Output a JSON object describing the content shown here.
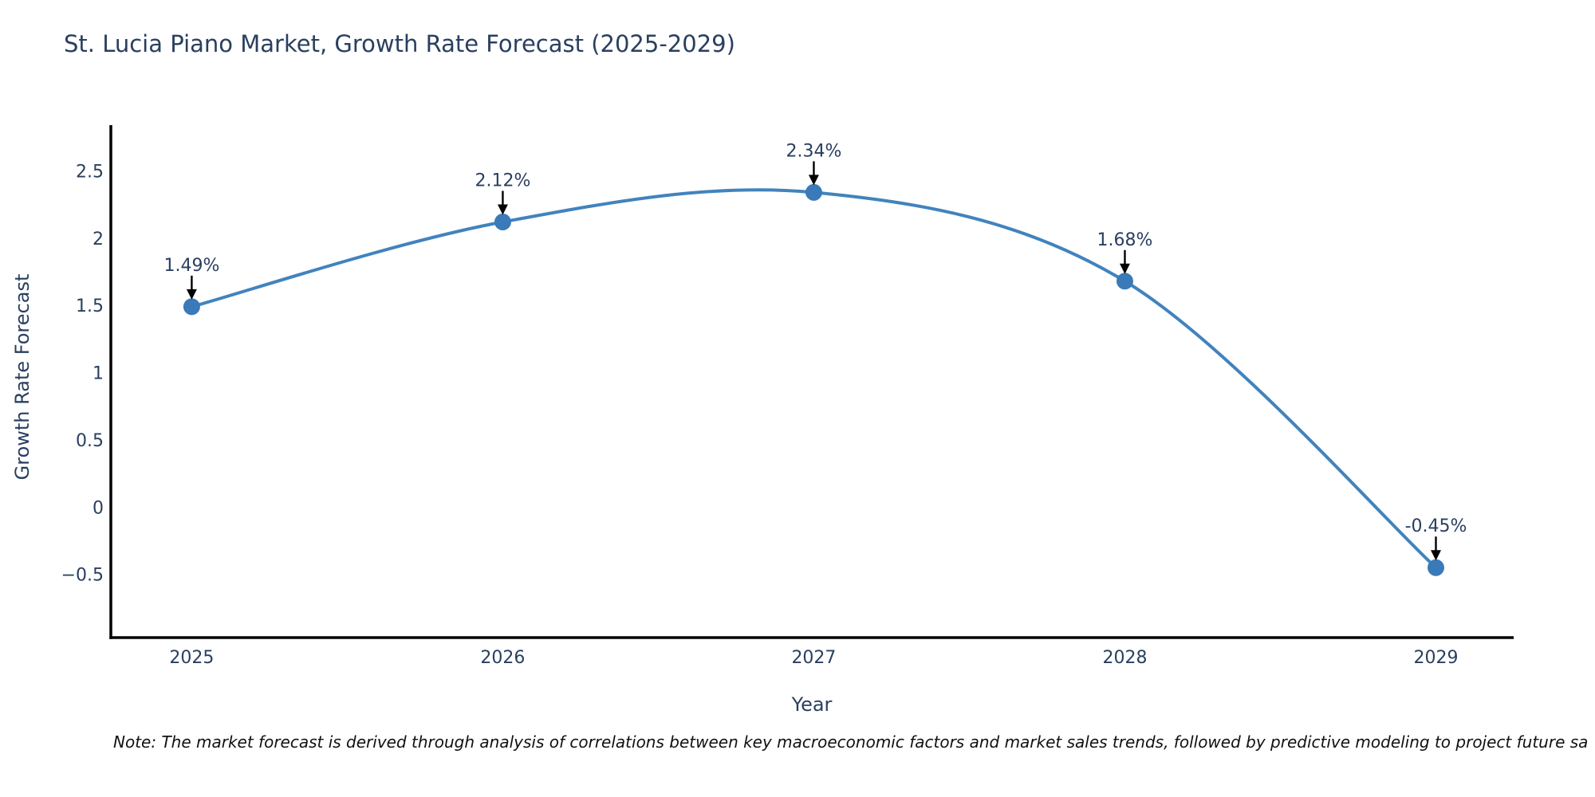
{
  "chart_data": {
    "type": "line",
    "title": "St. Lucia Piano Market, Growth Rate Forecast (2025-2029)",
    "xlabel": "Year",
    "ylabel": "Growth Rate Forecast",
    "x": [
      2025,
      2026,
      2027,
      2028,
      2029
    ],
    "values": [
      1.49,
      2.12,
      2.34,
      1.68,
      -0.45
    ],
    "point_labels": [
      "1.49%",
      "2.12%",
      "2.34%",
      "1.68%",
      "-0.45%"
    ],
    "series_name": "Growth Rate Forecast",
    "line_shape": "spline",
    "markers": true,
    "grid": false,
    "legend": "none",
    "xlim": [
      2024.74,
      2029.25
    ],
    "ylim": [
      -0.97,
      2.84
    ],
    "yticks": [
      {
        "v": 2.5,
        "label": "2.5"
      },
      {
        "v": 2,
        "label": "2"
      },
      {
        "v": 1.5,
        "label": "1.5"
      },
      {
        "v": 1,
        "label": "1"
      },
      {
        "v": 0.5,
        "label": "0.5"
      },
      {
        "v": 0,
        "label": "0"
      },
      {
        "v": -0.5,
        "label": "−0.5"
      }
    ],
    "xticks": [
      {
        "v": 2025,
        "label": "2025"
      },
      {
        "v": 2026,
        "label": "2026"
      },
      {
        "v": 2027,
        "label": "2027"
      },
      {
        "v": 2028,
        "label": "2028"
      },
      {
        "v": 2029,
        "label": "2029"
      }
    ],
    "colors": {
      "line": "#4183bd",
      "marker": "#3a7ab8",
      "text": "#2a3f5f",
      "axis": "#000000",
      "arrow": "#000000",
      "note": "#111111"
    }
  },
  "note": "Note: The market forecast is derived through analysis of correlations between key macroeconomic factors and market sales trends, followed by predictive modeling to project future sa"
}
